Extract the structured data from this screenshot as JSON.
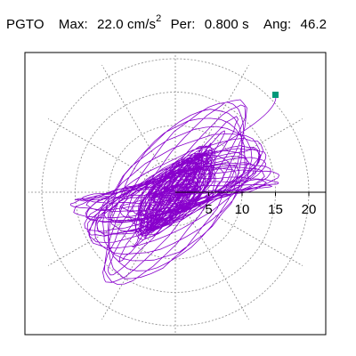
{
  "header": {
    "code": "PGTO",
    "max_label": "Max:",
    "max_value": "22.0",
    "max_unit": "cm/s",
    "max_exp": "2",
    "per_label": "Per:",
    "per_value": "0.800 s",
    "ang_label": "Ang:",
    "ang_value": "46.2"
  },
  "colors": {
    "trace": "#8800cc",
    "end_marker": "#00997a",
    "grid": "#888888",
    "axis": "#000000"
  },
  "chart_data": {
    "type": "scatter",
    "subtype": "polar particle-motion orbit",
    "title": "",
    "radial_ticks": [
      5,
      10,
      15,
      20
    ],
    "radial_tick_labels": [
      "5",
      "10",
      "15",
      "20"
    ],
    "radial_range": [
      0,
      22
    ],
    "grid": true,
    "grid_style": "dotted",
    "max_radius": 22.0,
    "angle_deg": 46.2,
    "end_point": {
      "x": 15.0,
      "y": 14.6
    },
    "orbit_shape": {
      "major_axis_angle_deg": 34,
      "major_extent": 18.5,
      "minor_extent": 8.5
    }
  }
}
